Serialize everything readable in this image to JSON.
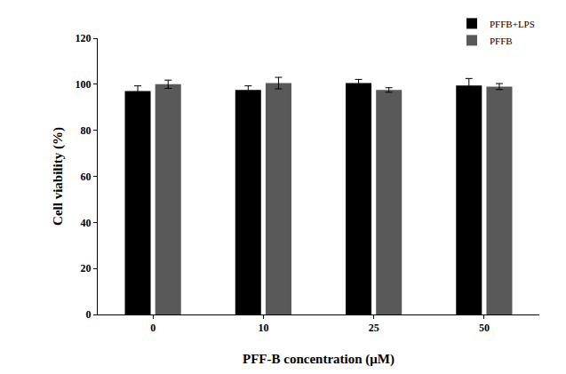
{
  "chart_data": {
    "type": "bar",
    "x_label": "PFF-B concentration (μM)",
    "y_label": "Cell viability (%)",
    "categories": [
      "0",
      "10",
      "25",
      "50"
    ],
    "series": [
      {
        "name": "PFFB+LPS",
        "color": "#000000",
        "values": [
          97,
          97.5,
          100.5,
          99.5
        ],
        "error": [
          2.3,
          1.8,
          1.6,
          3
        ]
      },
      {
        "name": "PFFB",
        "color": "#595959",
        "values": [
          100,
          100.5,
          97.5,
          99
        ],
        "error": [
          1.8,
          2.5,
          1,
          1.3
        ]
      }
    ],
    "ylim": [
      0,
      120
    ],
    "yticks": [
      0,
      20,
      40,
      60,
      80,
      100,
      120
    ],
    "grid": false,
    "legend": "top right"
  }
}
